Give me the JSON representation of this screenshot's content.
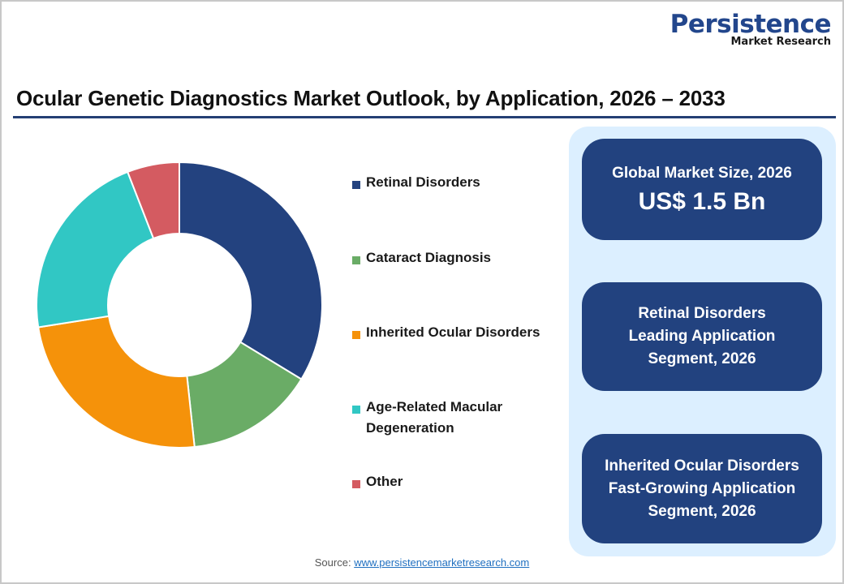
{
  "logo": {
    "main": "Persistence",
    "sub": "Market Research"
  },
  "title": "Ocular Genetic Diagnostics Market Outlook, by Application, 2026 – 2033",
  "legend": [
    {
      "label": "Retinal Disorders",
      "color": "#23427f"
    },
    {
      "label": "Cataract Diagnosis",
      "color": "#6aac66"
    },
    {
      "label": "Inherited Ocular Disorders",
      "color": "#f5920a"
    },
    {
      "label": "Age-Related Macular Degeneration",
      "line1": "Age-Related Macular",
      "line2": "Degeneration",
      "color": "#31c7c4"
    },
    {
      "label": "Other",
      "color": "#d45b61"
    }
  ],
  "cards": [
    {
      "line1": "Global Market Size, 2026",
      "big": "US$ 1.5 Bn"
    },
    {
      "line1": "Retinal Disorders",
      "line2": "Leading Application",
      "line3": "Segment, 2026"
    },
    {
      "line1": "Inherited Ocular Disorders",
      "line2": "Fast-Growing Application",
      "line3": "Segment, 2026"
    }
  ],
  "source": {
    "label": "Source:",
    "link": "www.persistencemarketresearch.com"
  },
  "colors": {
    "brand_blue": "#22427f",
    "panel_bg": "#dcefff",
    "rule": "#243f74"
  },
  "chart_data": {
    "type": "pie",
    "subtype": "donut",
    "title": "Ocular Genetic Diagnostics Market Outlook, by Application, 2026 – 2033",
    "categories": [
      "Retinal Disorders",
      "Cataract Diagnosis",
      "Inherited Ocular Disorders",
      "Age-Related Macular Degeneration",
      "Other"
    ],
    "values": [
      33.7,
      14.6,
      24.2,
      21.6,
      5.9
    ],
    "unit": "% share (estimated from slice angles)",
    "colors": [
      "#23427f",
      "#6aac66",
      "#f5920a",
      "#31c7c4",
      "#d45b61"
    ],
    "start_angle_deg": 0,
    "direction": "clockwise",
    "inner_radius_ratio": 0.5,
    "legend_position": "right",
    "data_labels": false
  }
}
